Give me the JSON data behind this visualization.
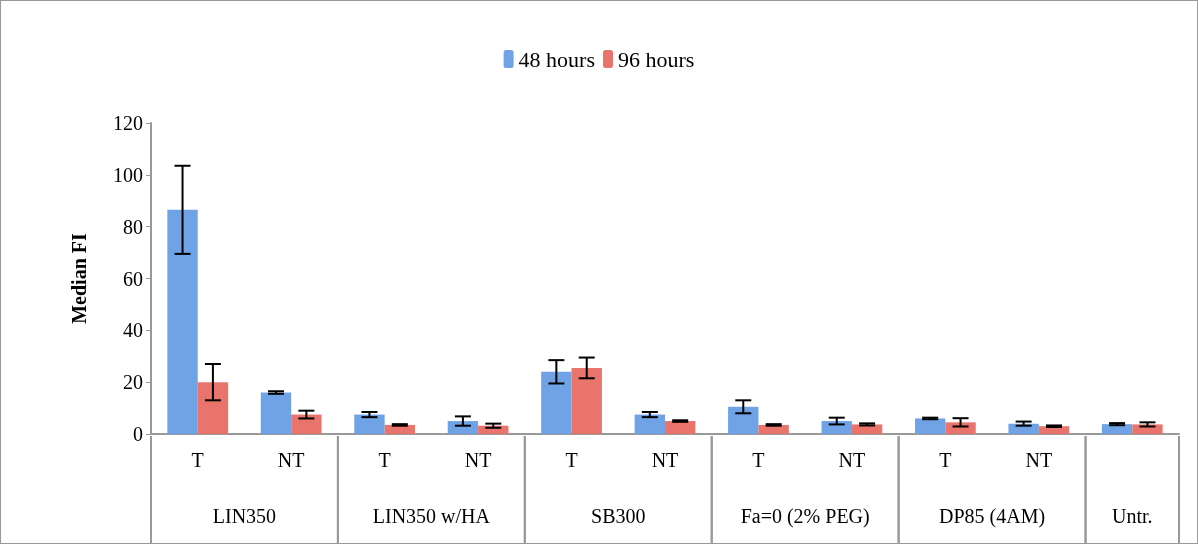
{
  "chart_data": {
    "type": "bar",
    "ylabel": "Median FI",
    "categories": [
      "T",
      "NT",
      "T",
      "NT",
      "T",
      "NT",
      "T",
      "NT",
      "T",
      "NT",
      null
    ],
    "series": [
      {
        "name": "48 hours",
        "color": "#6fa3e6",
        "values": [
          86.5,
          16,
          7.5,
          5,
          24,
          7.5,
          10.5,
          5,
          6,
          4,
          3.8
        ],
        "errors": [
          17,
          0.5,
          1,
          1.8,
          4.5,
          1,
          2.5,
          1.3,
          0.3,
          0.8,
          0.4
        ]
      },
      {
        "name": "96 hours",
        "color": "#e8746c",
        "values": [
          20,
          7.5,
          3.5,
          3.2,
          25.5,
          5,
          3.5,
          3.7,
          4.5,
          3,
          3.7
        ],
        "errors": [
          7,
          1.5,
          0.3,
          0.8,
          4,
          0.3,
          0.3,
          0.4,
          1.6,
          0.3,
          0.8
        ]
      }
    ],
    "annotations": [
      "LIN350",
      "LIN350 w/HA",
      "SB300",
      "Fa=0 (2% PEG)",
      "DP85 (4AM)",
      "Untr."
    ],
    "ylim": [
      0,
      120
    ],
    "yticks": [
      0,
      20,
      40,
      60,
      80,
      100,
      120
    ],
    "grid": false,
    "legend": "top"
  }
}
